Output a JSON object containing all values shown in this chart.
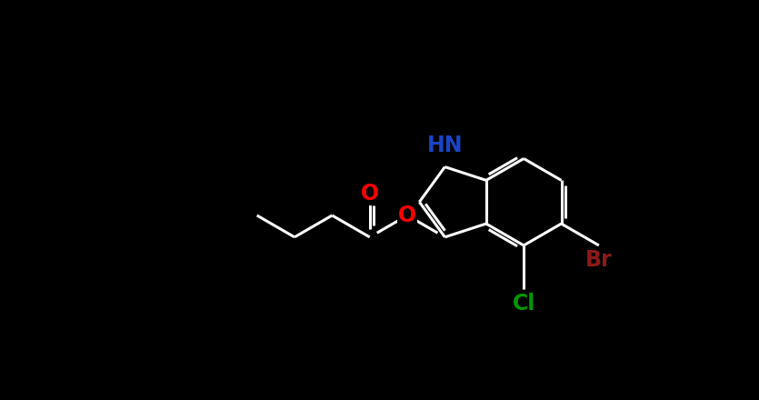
{
  "background_color": "#000000",
  "bond_color": "#FFFFFF",
  "nh_color": "#1B44C8",
  "o_color": "#FF0000",
  "cl_color": "#009900",
  "br_color": "#8B1A1A",
  "bond_width": 2.2,
  "dbo": 0.055,
  "font_size": 17,
  "figure_width": 8.35,
  "figure_height": 4.4,
  "dpi": 100,
  "xlim": [
    0,
    8.35
  ],
  "ylim": [
    0,
    4.4
  ],
  "bl": 0.62
}
